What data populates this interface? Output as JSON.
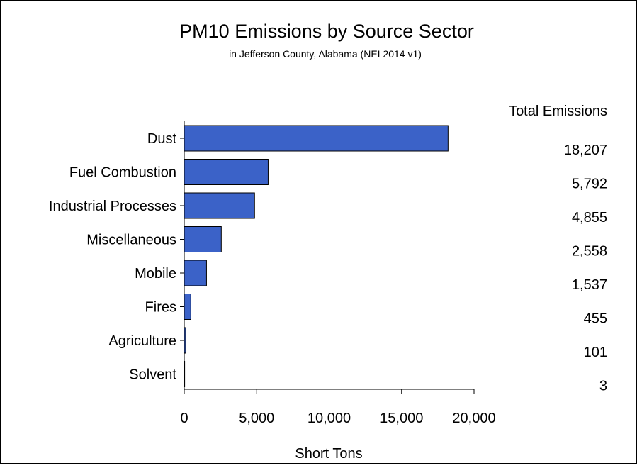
{
  "chart_data": {
    "type": "bar",
    "orientation": "horizontal",
    "title": "PM10 Emissions by Source Sector",
    "subtitle": "in Jefferson County, Alabama (NEI 2014 v1)",
    "xlabel": "Short Tons",
    "values_header": "Total Emissions",
    "categories": [
      "Dust",
      "Fuel Combustion",
      "Industrial Processes",
      "Miscellaneous",
      "Mobile",
      "Fires",
      "Agriculture",
      "Solvent"
    ],
    "values": [
      18207,
      5792,
      4855,
      2558,
      1537,
      455,
      101,
      3
    ],
    "value_labels": [
      "18,207",
      "5,792",
      "4,855",
      "2,558",
      "1,537",
      "455",
      "101",
      "3"
    ],
    "xlim": [
      0,
      20000
    ],
    "xticks": [
      0,
      5000,
      10000,
      15000,
      20000
    ],
    "xtick_labels": [
      "0",
      "5,000",
      "10,000",
      "15,000",
      "20,000"
    ],
    "bar_color": "#3b62c8",
    "grid": false
  }
}
